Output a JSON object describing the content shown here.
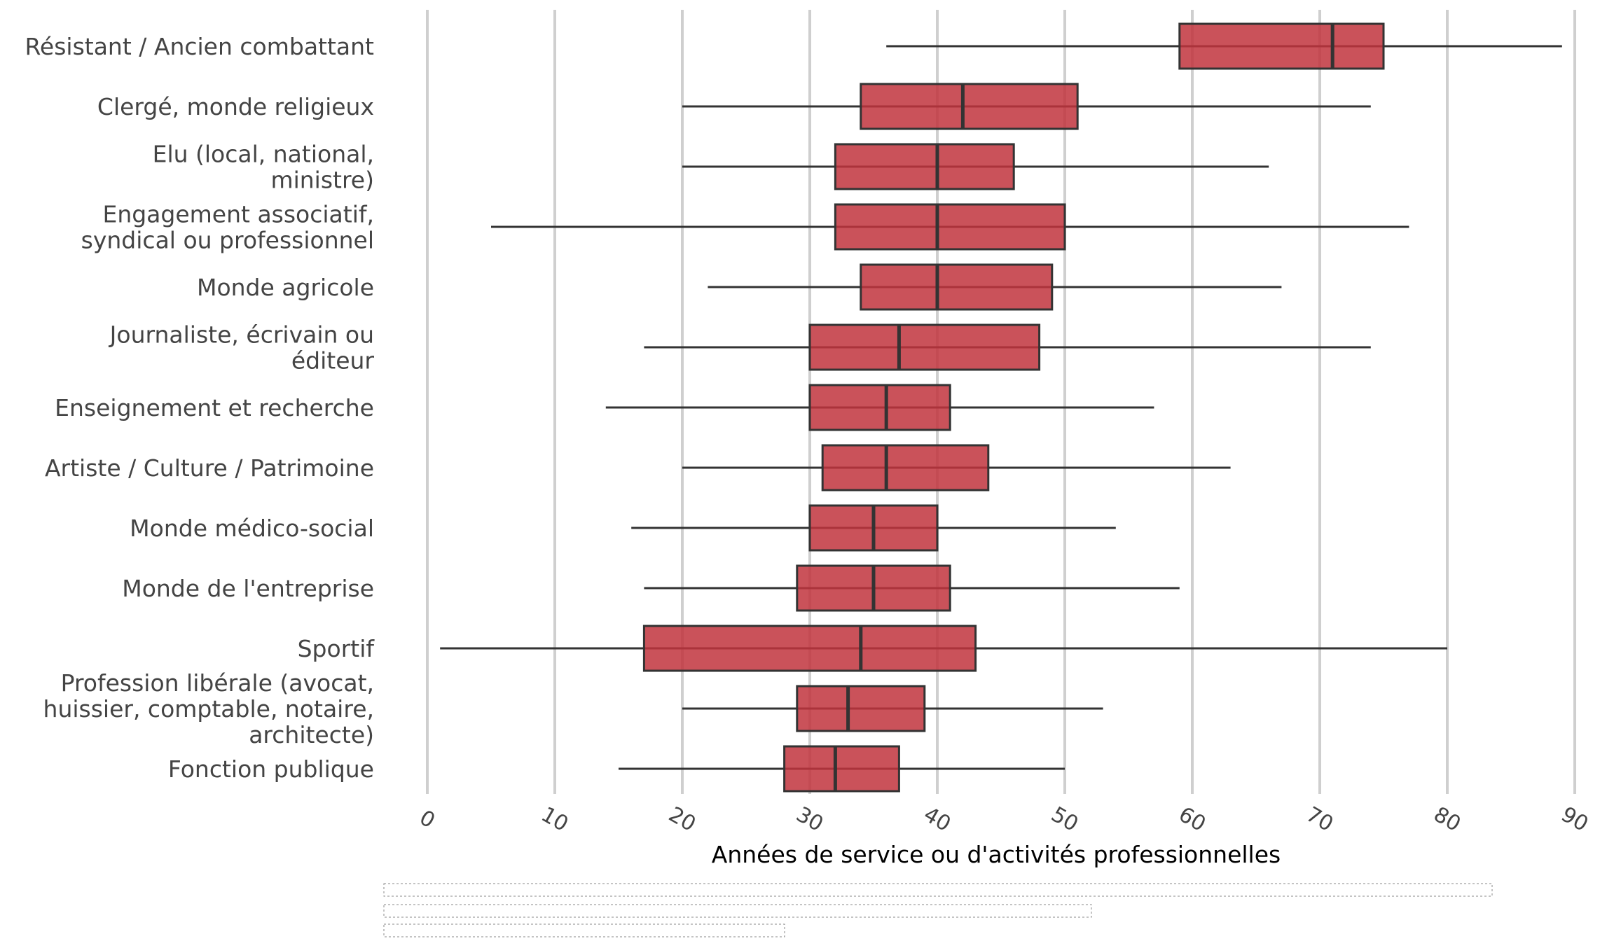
{
  "chart_data": {
    "type": "boxplot",
    "orientation": "horizontal",
    "xlabel": "Années de service ou d'activités professionnelles",
    "xlim": [
      0,
      90
    ],
    "xticks": [
      0,
      10,
      20,
      30,
      40,
      50,
      60,
      70,
      80,
      90
    ],
    "grid": "vertical",
    "box_color": "#C1343D",
    "categories": [
      {
        "label": [
          "Résistant / Ancien combattant"
        ],
        "whisker_low": 36,
        "q1": 59,
        "median": 71,
        "q3": 75,
        "whisker_high": 89
      },
      {
        "label": [
          "Clergé, monde religieux"
        ],
        "whisker_low": 20,
        "q1": 34,
        "median": 42,
        "q3": 51,
        "whisker_high": 74
      },
      {
        "label": [
          "Elu (local, national,",
          "ministre)"
        ],
        "whisker_low": 20,
        "q1": 32,
        "median": 40,
        "q3": 46,
        "whisker_high": 66
      },
      {
        "label": [
          "Engagement associatif,",
          "syndical ou professionnel"
        ],
        "whisker_low": 5,
        "q1": 32,
        "median": 40,
        "q3": 50,
        "whisker_high": 77
      },
      {
        "label": [
          "Monde agricole"
        ],
        "whisker_low": 22,
        "q1": 34,
        "median": 40,
        "q3": 49,
        "whisker_high": 67
      },
      {
        "label": [
          "Journaliste, écrivain ou",
          "éditeur"
        ],
        "whisker_low": 17,
        "q1": 30,
        "median": 37,
        "q3": 48,
        "whisker_high": 74
      },
      {
        "label": [
          "Enseignement et recherche"
        ],
        "whisker_low": 14,
        "q1": 30,
        "median": 36,
        "q3": 41,
        "whisker_high": 57
      },
      {
        "label": [
          "Artiste / Culture / Patrimoine"
        ],
        "whisker_low": 20,
        "q1": 31,
        "median": 36,
        "q3": 44,
        "whisker_high": 63
      },
      {
        "label": [
          "Monde médico-social"
        ],
        "whisker_low": 16,
        "q1": 30,
        "median": 35,
        "q3": 40,
        "whisker_high": 54
      },
      {
        "label": [
          "Monde de l'entreprise"
        ],
        "whisker_low": 17,
        "q1": 29,
        "median": 35,
        "q3": 41,
        "whisker_high": 59
      },
      {
        "label": [
          "Sportif"
        ],
        "whisker_low": 1,
        "q1": 17,
        "median": 34,
        "q3": 43,
        "whisker_high": 80
      },
      {
        "label": [
          "Profession libérale (avocat,",
          "huissier, comptable, notaire,",
          "architecte)"
        ],
        "whisker_low": 20,
        "q1": 29,
        "median": 33,
        "q3": 39,
        "whisker_high": 53
      },
      {
        "label": [
          "Fonction publique"
        ],
        "whisker_low": 15,
        "q1": 28,
        "median": 32,
        "q3": 37,
        "whisker_high": 50
      }
    ]
  }
}
